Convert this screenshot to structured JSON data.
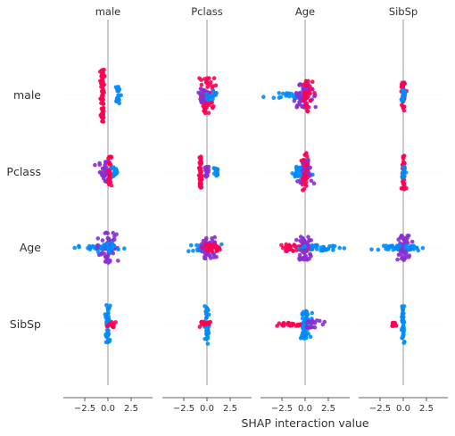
{
  "chart_data": {
    "type": "scatter",
    "subtype": "shap-interaction-beeswarm-matrix",
    "xlabel": "SHAP interaction value",
    "features": [
      "male",
      "Pclass",
      "Age",
      "SibSp"
    ],
    "xlim": [
      -4.8,
      4.2
    ],
    "xticks": [
      -2.5,
      0.0,
      2.5
    ],
    "xtick_labels": [
      "−2.5",
      "0.0",
      "2.5"
    ],
    "colors": {
      "high": "#ff0052",
      "low": "#008bfb",
      "mid": "#8a2fd0",
      "zero_line": "#999999",
      "axis": "#333333",
      "row_guide": "#dddddd"
    },
    "cells": [
      {
        "row": "male",
        "col": "male",
        "clusters": [
          {
            "x": -0.6,
            "spread": 0.1,
            "height": 0.75,
            "n": 70,
            "color": "high"
          },
          {
            "x": 1.1,
            "spread": 0.12,
            "height": 0.25,
            "n": 30,
            "color": "low"
          }
        ]
      },
      {
        "row": "male",
        "col": "Pclass",
        "clusters": [
          {
            "x": 0.1,
            "spread": 0.35,
            "height": 0.5,
            "n": 60,
            "color": "high"
          },
          {
            "x": -0.4,
            "spread": 0.2,
            "height": 0.2,
            "n": 20,
            "color": "mid"
          },
          {
            "x": 0.6,
            "spread": 0.35,
            "height": 0.15,
            "n": 15,
            "color": "low"
          }
        ]
      },
      {
        "row": "male",
        "col": "Age",
        "clusters": [
          {
            "x": -1.5,
            "spread": 0.9,
            "height": 0.08,
            "n": 25,
            "color": "low"
          },
          {
            "x": 0.0,
            "spread": 0.5,
            "height": 0.35,
            "n": 55,
            "color": "mid"
          },
          {
            "x": 0.3,
            "spread": 0.25,
            "height": 0.45,
            "n": 30,
            "color": "high"
          }
        ]
      },
      {
        "row": "male",
        "col": "SibSp",
        "clusters": [
          {
            "x": 0.0,
            "spread": 0.1,
            "height": 0.45,
            "n": 40,
            "color": "high"
          },
          {
            "x": 0.0,
            "spread": 0.12,
            "height": 0.15,
            "n": 20,
            "color": "low"
          }
        ]
      },
      {
        "row": "Pclass",
        "col": "male",
        "clusters": [
          {
            "x": -0.3,
            "spread": 0.35,
            "height": 0.3,
            "n": 40,
            "color": "mid"
          },
          {
            "x": 0.2,
            "spread": 0.1,
            "height": 0.45,
            "n": 30,
            "color": "high"
          },
          {
            "x": 0.7,
            "spread": 0.2,
            "height": 0.15,
            "n": 15,
            "color": "low"
          }
        ]
      },
      {
        "row": "Pclass",
        "col": "Pclass",
        "clusters": [
          {
            "x": -0.7,
            "spread": 0.08,
            "height": 0.45,
            "n": 45,
            "color": "high"
          },
          {
            "x": 0.0,
            "spread": 0.1,
            "height": 0.15,
            "n": 15,
            "color": "mid"
          },
          {
            "x": 1.0,
            "spread": 0.12,
            "height": 0.12,
            "n": 20,
            "color": "low"
          }
        ]
      },
      {
        "row": "Pclass",
        "col": "Age",
        "clusters": [
          {
            "x": -0.3,
            "spread": 0.5,
            "height": 0.15,
            "n": 40,
            "color": "low"
          },
          {
            "x": 0.0,
            "spread": 0.35,
            "height": 0.35,
            "n": 50,
            "color": "mid"
          },
          {
            "x": 0.0,
            "spread": 0.2,
            "height": 0.6,
            "n": 25,
            "color": "high"
          }
        ]
      },
      {
        "row": "Pclass",
        "col": "SibSp",
        "clusters": [
          {
            "x": 0.0,
            "spread": 0.1,
            "height": 0.5,
            "n": 35,
            "color": "high"
          },
          {
            "x": 0.0,
            "spread": 0.12,
            "height": 0.15,
            "n": 15,
            "color": "low"
          }
        ]
      },
      {
        "row": "Age",
        "col": "male",
        "clusters": [
          {
            "x": -1.2,
            "spread": 1.0,
            "height": 0.06,
            "n": 25,
            "color": "low"
          },
          {
            "x": 0.0,
            "spread": 0.45,
            "height": 0.45,
            "n": 60,
            "color": "mid"
          },
          {
            "x": 0.3,
            "spread": 0.5,
            "height": 0.15,
            "n": 20,
            "color": "low"
          }
        ]
      },
      {
        "row": "Age",
        "col": "Pclass",
        "clusters": [
          {
            "x": -0.5,
            "spread": 0.7,
            "height": 0.12,
            "n": 35,
            "color": "low"
          },
          {
            "x": 0.0,
            "spread": 0.45,
            "height": 0.3,
            "n": 50,
            "color": "mid"
          },
          {
            "x": 0.6,
            "spread": 0.5,
            "height": 0.1,
            "n": 25,
            "color": "high"
          }
        ]
      },
      {
        "row": "Age",
        "col": "Age",
        "clusters": [
          {
            "x": -1.0,
            "spread": 0.8,
            "height": 0.1,
            "n": 40,
            "color": "high"
          },
          {
            "x": 0.0,
            "spread": 0.35,
            "height": 0.35,
            "n": 60,
            "color": "mid"
          },
          {
            "x": 1.5,
            "spread": 1.0,
            "height": 0.08,
            "n": 30,
            "color": "low"
          }
        ]
      },
      {
        "row": "Age",
        "col": "SibSp",
        "clusters": [
          {
            "x": -1.2,
            "spread": 1.1,
            "height": 0.06,
            "n": 30,
            "color": "low"
          },
          {
            "x": 0.0,
            "spread": 0.35,
            "height": 0.35,
            "n": 50,
            "color": "mid"
          },
          {
            "x": 0.9,
            "spread": 0.6,
            "height": 0.08,
            "n": 20,
            "color": "low"
          }
        ]
      },
      {
        "row": "SibSp",
        "col": "male",
        "clusters": [
          {
            "x": 0.0,
            "spread": 0.12,
            "height": 0.55,
            "n": 45,
            "color": "low"
          },
          {
            "x": 0.4,
            "spread": 0.25,
            "height": 0.08,
            "n": 15,
            "color": "high"
          }
        ]
      },
      {
        "row": "SibSp",
        "col": "Pclass",
        "clusters": [
          {
            "x": 0.0,
            "spread": 0.1,
            "height": 0.55,
            "n": 40,
            "color": "low"
          },
          {
            "x": -0.2,
            "spread": 0.3,
            "height": 0.08,
            "n": 15,
            "color": "high"
          }
        ]
      },
      {
        "row": "SibSp",
        "col": "Age",
        "clusters": [
          {
            "x": -1.5,
            "spread": 0.9,
            "height": 0.05,
            "n": 30,
            "color": "high"
          },
          {
            "x": 0.0,
            "spread": 0.3,
            "height": 0.4,
            "n": 50,
            "color": "low"
          },
          {
            "x": 1.0,
            "spread": 0.5,
            "height": 0.12,
            "n": 20,
            "color": "mid"
          }
        ]
      },
      {
        "row": "SibSp",
        "col": "SibSp",
        "clusters": [
          {
            "x": 0.0,
            "spread": 0.08,
            "height": 0.55,
            "n": 40,
            "color": "low"
          },
          {
            "x": -1.0,
            "spread": 0.15,
            "height": 0.05,
            "n": 12,
            "color": "high"
          }
        ]
      }
    ]
  }
}
